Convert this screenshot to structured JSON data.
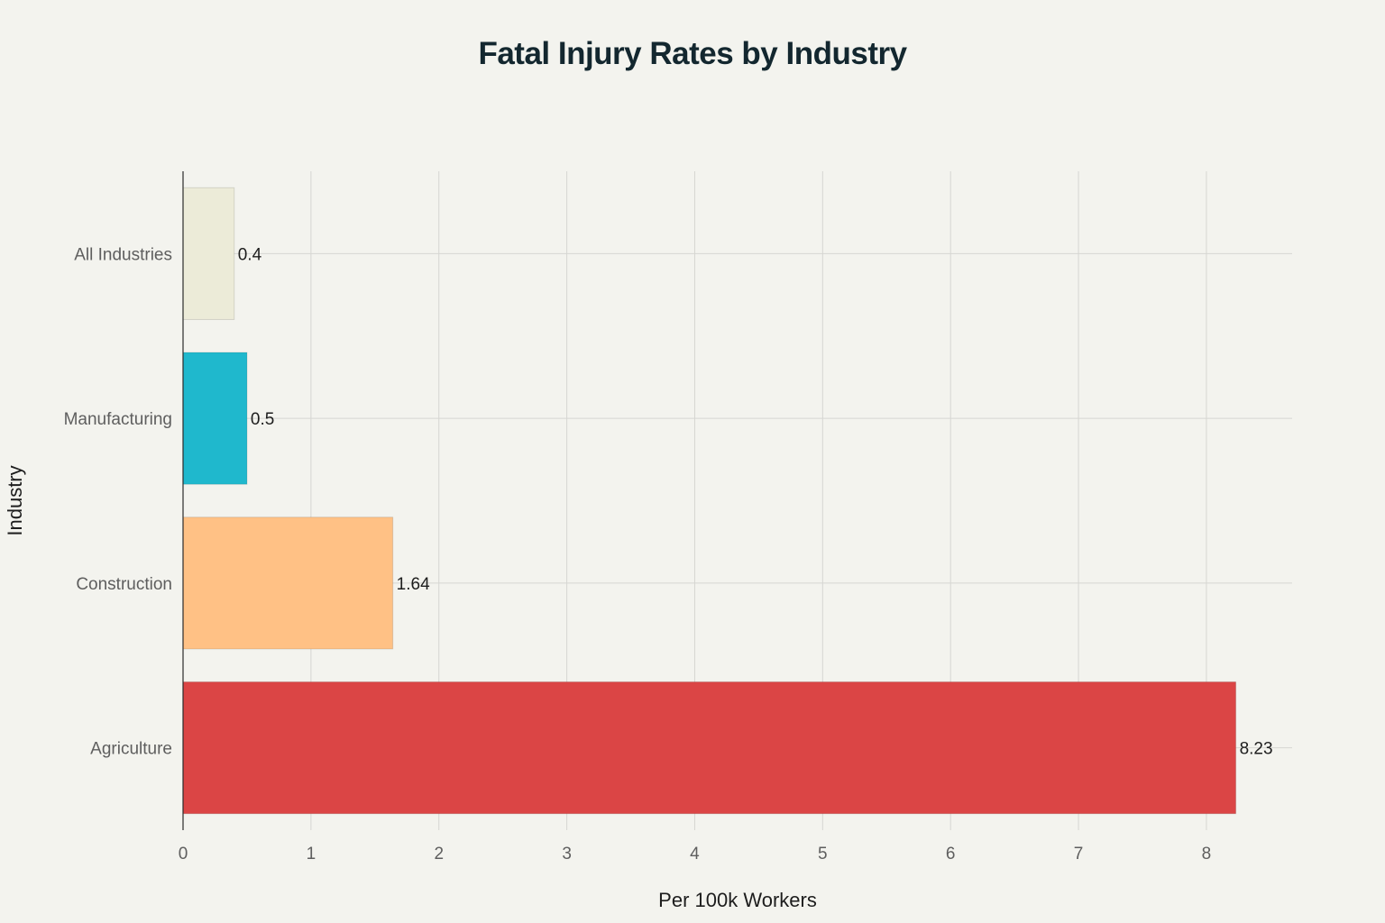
{
  "chart_data": {
    "type": "bar",
    "orientation": "horizontal",
    "title": "Fatal Injury Rates by Industry",
    "xlabel": "Per 100k Workers",
    "ylabel": "Industry",
    "categories": [
      "All Industries",
      "Manufacturing",
      "Construction",
      "Agriculture"
    ],
    "values": [
      0.4,
      0.5,
      1.64,
      8.23
    ],
    "data_labels": [
      "0.4",
      "0.5",
      "1.64",
      "8.23"
    ],
    "colors": [
      "#ecebd8",
      "#1fb8cd",
      "#ffc185",
      "#db4545"
    ],
    "xlim": [
      0,
      8.67
    ],
    "xticks": [
      0,
      1,
      2,
      3,
      4,
      5,
      6,
      7,
      8
    ],
    "grid": true,
    "legend": "none"
  },
  "colors": {
    "background": "#f3f3ee",
    "grid": "#d6d6d2",
    "axis": "#2b2b2b",
    "title": "#13272f"
  }
}
